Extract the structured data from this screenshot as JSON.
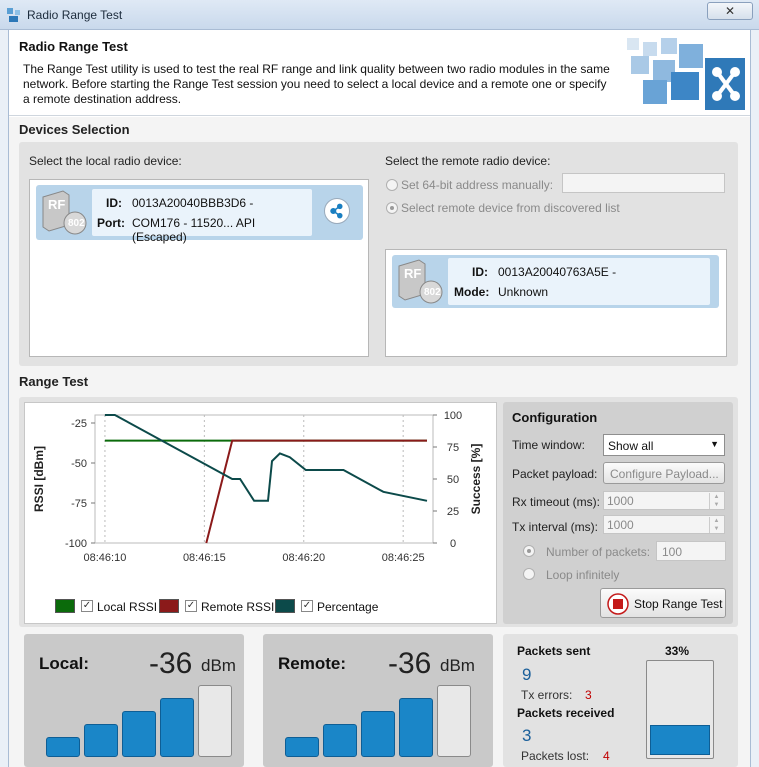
{
  "window": {
    "title": "Radio Range Test",
    "close_glyph": "✕"
  },
  "header": {
    "title": "Radio Range Test",
    "description": "The Range Test utility is used to test the real RF range and link quality between two radio modules in the same network. Before starting the Range Test session you need to select a local device and a remote one or specify a remote destination address."
  },
  "devices": {
    "section_title": "Devices Selection",
    "local_label": "Select the local radio device:",
    "remote_label": "Select the remote radio device:",
    "local_device": {
      "icon_text": "RF",
      "badge": "802",
      "id_key": "ID:",
      "id": "0013A20040BBB3D6 -",
      "port_key": "Port:",
      "port": "COM176 - 11520... API (Escaped)"
    },
    "opt_manual": "Set 64-bit address manually:",
    "opt_discovered": "Select remote device from discovered list",
    "manual_address": "",
    "remote_device": {
      "icon_text": "RF",
      "badge": "802",
      "id_key": "ID:",
      "id": "0013A20040763A5E -",
      "mode_key": "Mode:",
      "mode": "Unknown"
    }
  },
  "range_test": {
    "section_title": "Range Test",
    "legend": [
      {
        "name": "Local RSSI",
        "color": "#0b6b0b"
      },
      {
        "name": "Remote RSSI",
        "color": "#8b1a1a"
      },
      {
        "name": "Percentage",
        "color": "#0c4a4a"
      }
    ],
    "check_glyph": "✓"
  },
  "chart_data": {
    "type": "line",
    "ylabel": "RSSI [dBm]",
    "y2label": "Success [%]",
    "ylim": [
      -100,
      -20
    ],
    "y2lim": [
      0,
      100
    ],
    "yticks": [
      -25,
      -50,
      -75,
      -100
    ],
    "y2ticks": [
      100,
      75,
      50,
      25,
      0
    ],
    "xticks": [
      "08:46:10",
      "08:46:15",
      "08:46:20",
      "08:46:25"
    ],
    "xlim": [
      -0.5,
      16.5
    ],
    "grid": true,
    "series": [
      {
        "name": "Local RSSI",
        "axis": "left",
        "x": [
          0,
          16.2
        ],
        "values": [
          -36,
          -36
        ]
      },
      {
        "name": "Remote RSSI",
        "axis": "left",
        "x": [
          5.1,
          6.4,
          16.2
        ],
        "values": [
          -100,
          -36,
          -36
        ]
      },
      {
        "name": "Percentage",
        "axis": "right",
        "x": [
          0,
          0.5,
          6.4,
          6.8,
          7.5,
          8.2,
          8.4,
          8.8,
          9.3,
          10.1,
          12,
          14,
          16.2
        ],
        "values": [
          100,
          100,
          50,
          50,
          33,
          33,
          64,
          70,
          67,
          57,
          57,
          40,
          33
        ]
      }
    ]
  },
  "config": {
    "title": "Configuration",
    "time_window_label": "Time window:",
    "time_window_value": "Show all",
    "payload_label": "Packet payload:",
    "payload_button": "Configure Payload...",
    "rx_label": "Rx timeout (ms):",
    "rx_value": "1000",
    "tx_label": "Tx interval (ms):",
    "tx_value": "1000",
    "num_packets_label": "Number of packets:",
    "num_packets_value": "100",
    "loop_label": "Loop infinitely",
    "stop_button": "Stop Range Test"
  },
  "local_meter": {
    "label": "Local:",
    "value": "-36",
    "unit": "dBm",
    "bars_filled": 4,
    "bars_total": 5
  },
  "remote_meter": {
    "label": "Remote:",
    "value": "-36",
    "unit": "dBm",
    "bars_filled": 4,
    "bars_total": 5
  },
  "packets": {
    "sent_label": "Packets sent",
    "sent": "9",
    "tx_errors_label": "Tx errors:",
    "tx_errors": "3",
    "received_label": "Packets received",
    "received": "3",
    "lost_label": "Packets lost:",
    "lost": "4",
    "success_percent": "33%",
    "success_fraction": 0.33
  }
}
